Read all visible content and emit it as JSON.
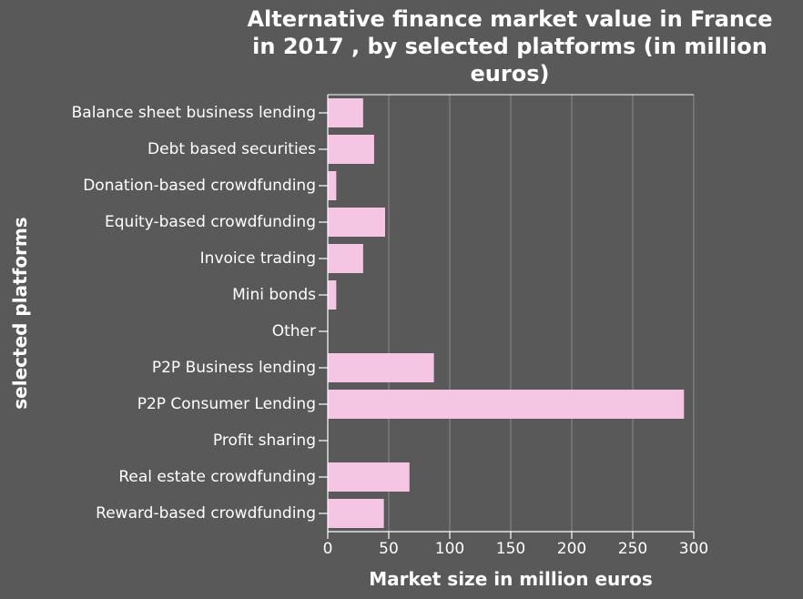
{
  "chart_data": {
    "type": "bar",
    "orientation": "horizontal",
    "title_lines": [
      "Alternative finance market value in France",
      "in 2017 , by selected platforms (in million",
      "euros)"
    ],
    "xlabel": "Market size in million euros",
    "ylabel": "selected platforms",
    "xlim": [
      0,
      300
    ],
    "xticks": [
      0,
      50,
      100,
      150,
      200,
      250,
      300
    ],
    "grid": "vertical",
    "bar_color": "#f5c6e3",
    "categories": [
      "Balance sheet business lending",
      "Debt based securities",
      "Donation-based crowdfunding",
      "Equity-based crowdfunding",
      "Invoice trading",
      "Mini bonds",
      "Other",
      "P2P Business lending",
      "P2P Consumer Lending",
      "Profit sharing",
      "Real estate crowdfunding",
      "Reward-based crowdfunding"
    ],
    "values": [
      29,
      38,
      7,
      47,
      29,
      7,
      0,
      87,
      292,
      0,
      67,
      46
    ]
  }
}
